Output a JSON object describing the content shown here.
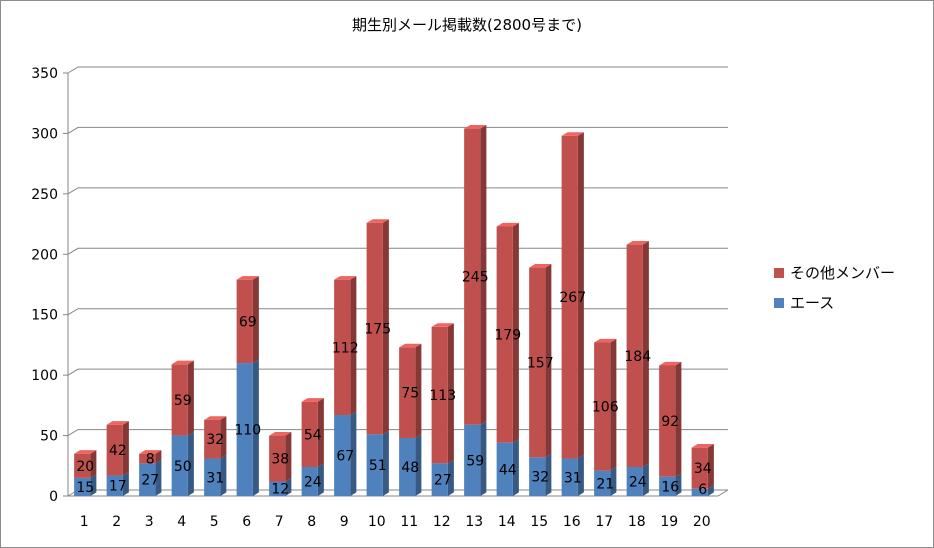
{
  "chart_data": {
    "type": "bar",
    "stacked": true,
    "title": "期生別メール掲載数(2800号まで)",
    "categories": [
      "1",
      "2",
      "3",
      "4",
      "5",
      "6",
      "7",
      "8",
      "9",
      "10",
      "11",
      "12",
      "13",
      "14",
      "15",
      "16",
      "17",
      "18",
      "19",
      "20"
    ],
    "series": [
      {
        "name": "エース",
        "color": "#4f81bd",
        "values": [
          15,
          17,
          27,
          50,
          31,
          110,
          12,
          24,
          67,
          51,
          48,
          27,
          59,
          44,
          32,
          31,
          21,
          24,
          16,
          6
        ]
      },
      {
        "name": "その他メンバー",
        "color": "#c0504d",
        "values": [
          20,
          42,
          8,
          59,
          32,
          69,
          38,
          54,
          112,
          175,
          75,
          113,
          245,
          179,
          157,
          267,
          106,
          184,
          92,
          34
        ]
      }
    ],
    "ylim": [
      0,
      350
    ],
    "yticks": [
      0,
      50,
      100,
      150,
      200,
      250,
      300,
      350
    ],
    "grid": true,
    "legend_position": "right"
  }
}
